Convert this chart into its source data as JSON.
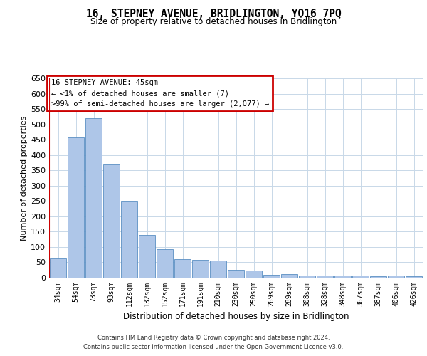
{
  "title": "16, STEPNEY AVENUE, BRIDLINGTON, YO16 7PQ",
  "subtitle": "Size of property relative to detached houses in Bridlington",
  "xlabel": "Distribution of detached houses by size in Bridlington",
  "ylabel": "Number of detached properties",
  "categories": [
    "34sqm",
    "54sqm",
    "73sqm",
    "93sqm",
    "112sqm",
    "132sqm",
    "152sqm",
    "171sqm",
    "191sqm",
    "210sqm",
    "230sqm",
    "250sqm",
    "269sqm",
    "289sqm",
    "308sqm",
    "328sqm",
    "348sqm",
    "367sqm",
    "387sqm",
    "406sqm",
    "426sqm"
  ],
  "values": [
    62,
    457,
    520,
    368,
    248,
    140,
    93,
    60,
    57,
    55,
    25,
    23,
    10,
    12,
    7,
    6,
    8,
    6,
    5,
    6,
    5
  ],
  "bar_color": "#aec6e8",
  "bar_edge_color": "#5a8fc2",
  "grid_color": "#c8d8e8",
  "background_color": "#ffffff",
  "annotation_line1": "16 STEPNEY AVENUE: 45sqm",
  "annotation_line2": "← <1% of detached houses are smaller (7)",
  "annotation_line3": ">99% of semi-detached houses are larger (2,077) →",
  "annotation_box_color": "#cc0000",
  "ylim": [
    0,
    650
  ],
  "yticks": [
    0,
    50,
    100,
    150,
    200,
    250,
    300,
    350,
    400,
    450,
    500,
    550,
    600,
    650
  ],
  "footer_line1": "Contains HM Land Registry data © Crown copyright and database right 2024.",
  "footer_line2": "Contains public sector information licensed under the Open Government Licence v3.0."
}
